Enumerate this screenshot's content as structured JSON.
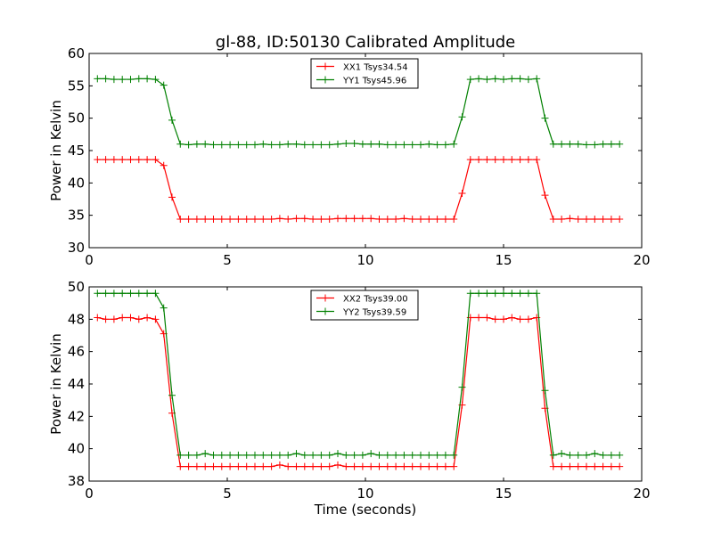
{
  "title": "gl-88, ID:50130 Calibrated Amplitude",
  "colors": {
    "xx": "#ff0000",
    "yy": "#008000",
    "axis": "#000000",
    "background": "#ffffff"
  },
  "chart_data": [
    {
      "type": "line",
      "title": "gl-88, ID:50130 Calibrated Amplitude",
      "xlabel": "",
      "ylabel": "Power in Kelvin",
      "xlim": [
        0,
        20
      ],
      "ylim": [
        30,
        60
      ],
      "xticks": [
        "0",
        "5",
        "10",
        "15",
        "20"
      ],
      "yticks": [
        "30",
        "35",
        "40",
        "45",
        "50",
        "55",
        "60"
      ],
      "grid": false,
      "marker": "+",
      "legend_position": "top-center",
      "x": [
        0.3,
        0.6,
        0.9,
        1.2,
        1.5,
        1.8,
        2.1,
        2.4,
        2.7,
        3.0,
        3.3,
        3.6,
        3.9,
        4.2,
        4.5,
        4.8,
        5.1,
        5.4,
        5.7,
        6.0,
        6.3,
        6.6,
        6.9,
        7.2,
        7.5,
        7.8,
        8.1,
        8.4,
        8.7,
        9.0,
        9.3,
        9.6,
        9.9,
        10.2,
        10.5,
        10.8,
        11.1,
        11.4,
        11.7,
        12.0,
        12.3,
        12.6,
        12.9,
        13.2,
        13.5,
        13.8,
        14.1,
        14.4,
        14.7,
        15.0,
        15.3,
        15.6,
        15.9,
        16.2,
        16.5,
        16.8,
        17.1,
        17.4,
        17.7,
        18.0,
        18.3,
        18.6,
        18.9,
        19.2
      ],
      "series": [
        {
          "name": "XX1 Tsys34.54",
          "color": "#ff0000",
          "values": [
            43.6,
            43.6,
            43.6,
            43.6,
            43.6,
            43.6,
            43.6,
            43.6,
            42.7,
            37.8,
            34.4,
            34.4,
            34.4,
            34.4,
            34.4,
            34.4,
            34.4,
            34.4,
            34.4,
            34.4,
            34.4,
            34.4,
            34.5,
            34.4,
            34.5,
            34.5,
            34.4,
            34.4,
            34.4,
            34.5,
            34.5,
            34.5,
            34.5,
            34.5,
            34.4,
            34.4,
            34.4,
            34.5,
            34.4,
            34.4,
            34.4,
            34.4,
            34.4,
            34.4,
            38.4,
            43.6,
            43.6,
            43.6,
            43.6,
            43.6,
            43.6,
            43.6,
            43.6,
            43.6,
            38.1,
            34.4,
            34.4,
            34.5,
            34.4,
            34.4,
            34.4,
            34.4,
            34.4,
            34.4
          ]
        },
        {
          "name": "YY1 Tsys45.96",
          "color": "#008000",
          "values": [
            56.1,
            56.1,
            56.0,
            56.0,
            56.0,
            56.1,
            56.1,
            56.0,
            55.1,
            49.7,
            46.0,
            45.9,
            46.0,
            46.0,
            45.9,
            45.9,
            45.9,
            45.9,
            45.9,
            45.9,
            46.0,
            45.9,
            45.9,
            46.0,
            46.0,
            45.9,
            45.9,
            45.9,
            45.9,
            46.0,
            46.1,
            46.1,
            46.0,
            46.0,
            46.0,
            45.9,
            45.9,
            45.9,
            45.9,
            45.9,
            46.0,
            45.9,
            45.9,
            46.0,
            50.2,
            56.0,
            56.1,
            56.0,
            56.1,
            56.0,
            56.1,
            56.1,
            56.0,
            56.1,
            50.0,
            46.0,
            46.0,
            46.0,
            46.0,
            45.9,
            45.9,
            46.0,
            46.0,
            46.0
          ]
        }
      ]
    },
    {
      "type": "line",
      "title": "",
      "xlabel": "Time (seconds)",
      "ylabel": "Power in Kelvin",
      "xlim": [
        0,
        20
      ],
      "ylim": [
        38,
        50
      ],
      "xticks": [
        "0",
        "5",
        "10",
        "15",
        "20"
      ],
      "yticks": [
        "38",
        "40",
        "42",
        "44",
        "46",
        "48",
        "50"
      ],
      "grid": false,
      "marker": "+",
      "legend_position": "top-center",
      "x": [
        0.3,
        0.6,
        0.9,
        1.2,
        1.5,
        1.8,
        2.1,
        2.4,
        2.7,
        3.0,
        3.3,
        3.6,
        3.9,
        4.2,
        4.5,
        4.8,
        5.1,
        5.4,
        5.7,
        6.0,
        6.3,
        6.6,
        6.9,
        7.2,
        7.5,
        7.8,
        8.1,
        8.4,
        8.7,
        9.0,
        9.3,
        9.6,
        9.9,
        10.2,
        10.5,
        10.8,
        11.1,
        11.4,
        11.7,
        12.0,
        12.3,
        12.6,
        12.9,
        13.2,
        13.5,
        13.8,
        14.1,
        14.4,
        14.7,
        15.0,
        15.3,
        15.6,
        15.9,
        16.2,
        16.5,
        16.8,
        17.1,
        17.4,
        17.7,
        18.0,
        18.3,
        18.6,
        18.9,
        19.2
      ],
      "series": [
        {
          "name": "XX2 Tsys39.00",
          "color": "#ff0000",
          "values": [
            48.1,
            48.0,
            48.0,
            48.1,
            48.1,
            48.0,
            48.1,
            48.0,
            47.1,
            42.2,
            38.9,
            38.9,
            38.9,
            38.9,
            38.9,
            38.9,
            38.9,
            38.9,
            38.9,
            38.9,
            38.9,
            38.9,
            39.0,
            38.9,
            38.9,
            38.9,
            38.9,
            38.9,
            38.9,
            39.0,
            38.9,
            38.9,
            38.9,
            38.9,
            38.9,
            38.9,
            38.9,
            38.9,
            38.9,
            38.9,
            38.9,
            38.9,
            38.9,
            38.9,
            42.7,
            48.1,
            48.1,
            48.1,
            48.0,
            48.0,
            48.1,
            48.0,
            48.0,
            48.1,
            42.5,
            38.9,
            38.9,
            38.9,
            38.9,
            38.9,
            38.9,
            38.9,
            38.9,
            38.9
          ]
        },
        {
          "name": "YY2 Tsys39.59",
          "color": "#008000",
          "values": [
            49.6,
            49.6,
            49.6,
            49.6,
            49.6,
            49.6,
            49.6,
            49.6,
            48.7,
            43.3,
            39.6,
            39.6,
            39.6,
            39.7,
            39.6,
            39.6,
            39.6,
            39.6,
            39.6,
            39.6,
            39.6,
            39.6,
            39.6,
            39.6,
            39.7,
            39.6,
            39.6,
            39.6,
            39.6,
            39.7,
            39.6,
            39.6,
            39.6,
            39.7,
            39.6,
            39.6,
            39.6,
            39.6,
            39.6,
            39.6,
            39.6,
            39.6,
            39.6,
            39.6,
            43.8,
            49.6,
            49.6,
            49.6,
            49.6,
            49.6,
            49.6,
            49.6,
            49.6,
            49.6,
            43.6,
            39.6,
            39.7,
            39.6,
            39.6,
            39.6,
            39.7,
            39.6,
            39.6,
            39.6
          ]
        }
      ]
    }
  ]
}
